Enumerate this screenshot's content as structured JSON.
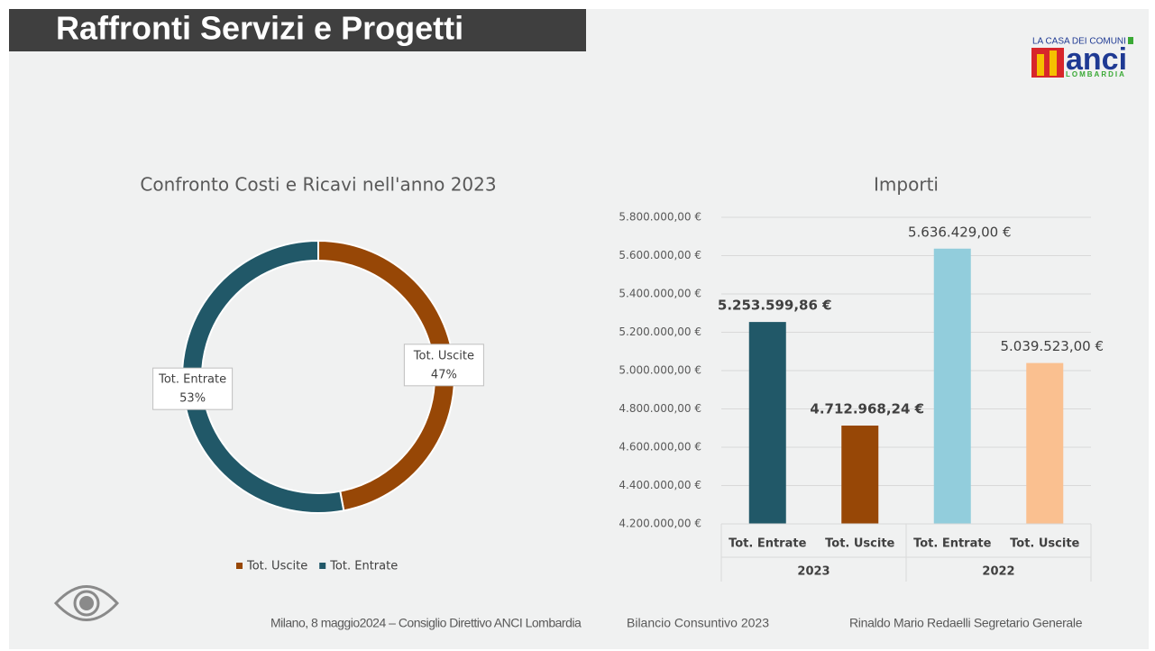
{
  "header": {
    "title": "Raffronti Servizi e Progetti",
    "logo": {
      "top": "LA CASA DEI COMUNI",
      "name": "anci",
      "region": "LOMBARDIA"
    }
  },
  "chart_data": [
    {
      "type": "donut",
      "title": "Confronto Costi e Ricavi nell'anno 2023",
      "categories": [
        "Tot. Uscite",
        "Tot. Entrate"
      ],
      "values": [
        47,
        53
      ],
      "value_labels": [
        "47%",
        "53%"
      ],
      "colors": [
        "#974706",
        "#215868"
      ],
      "legend": "bottom"
    },
    {
      "type": "bar",
      "title": "Importi",
      "categories": [
        "Tot. Entrate",
        "Tot. Uscite",
        "Tot. Entrate",
        "Tot. Uscite"
      ],
      "groups": [
        "2023",
        "2022"
      ],
      "values": [
        5253599.86,
        4712968.24,
        5636429,
        5039523
      ],
      "value_labels": [
        "5.253.599,86 €",
        "4.712.968,24 €",
        "5.636.429,00 €",
        "5.039.523,00 €"
      ],
      "value_label_bold": [
        true,
        true,
        false,
        false
      ],
      "colors": [
        "#215868",
        "#974706",
        "#92cddc",
        "#fac090"
      ],
      "ylim": [
        4200000,
        5800000
      ],
      "yticks": [
        {
          "value": 4200000,
          "label": "4.200.000,00 €"
        },
        {
          "value": 4400000,
          "label": "4.400.000,00 €"
        },
        {
          "value": 4600000,
          "label": "4.600.000,00 €"
        },
        {
          "value": 4800000,
          "label": "4.800.000,00 €"
        },
        {
          "value": 5000000,
          "label": "5.000.000,00 €"
        },
        {
          "value": 5200000,
          "label": "5.200.000,00 €"
        },
        {
          "value": 5400000,
          "label": "5.400.000,00 €"
        },
        {
          "value": 5600000,
          "label": "5.600.000,00 €"
        },
        {
          "value": 5800000,
          "label": "5.800.000,00 €"
        }
      ],
      "grid": true
    }
  ],
  "footer": {
    "left": "Milano, 8 maggio2024 – Consiglio Direttivo ANCI Lombardia",
    "center": "Bilancio Consuntivo 2023",
    "right": "Rinaldo Mario Redaelli Segretario Generale"
  }
}
